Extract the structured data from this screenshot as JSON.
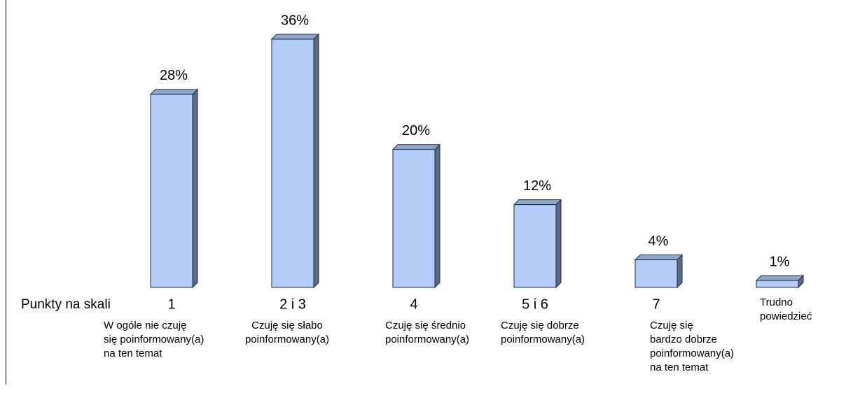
{
  "chart_data": {
    "type": "bar3d",
    "x_label": "Punkty na skali",
    "categories": [
      "1",
      "2 i 3",
      "4",
      "5 i 6",
      "7",
      null
    ],
    "descriptions": [
      [
        "W ogóle nie czuję",
        "się poinformowany(a)",
        "na ten temat"
      ],
      [
        "Czuję się słabo",
        "poinformowany(a)"
      ],
      [
        "Czuję się średnio",
        "poinformowany(a)"
      ],
      [
        "Czuję się dobrze",
        "poinformowany(a)"
      ],
      [
        "Czuję się",
        "bardzo dobrze",
        "poinformowany(a)",
        "na ten temat"
      ],
      [
        "Trudno",
        "powiedzieć"
      ]
    ],
    "values": [
      28,
      36,
      20,
      12,
      4,
      1
    ],
    "value_labels": [
      "28%",
      "36%",
      "20%",
      "12%",
      "4%",
      "1%"
    ],
    "color": "#b3cdf8"
  }
}
